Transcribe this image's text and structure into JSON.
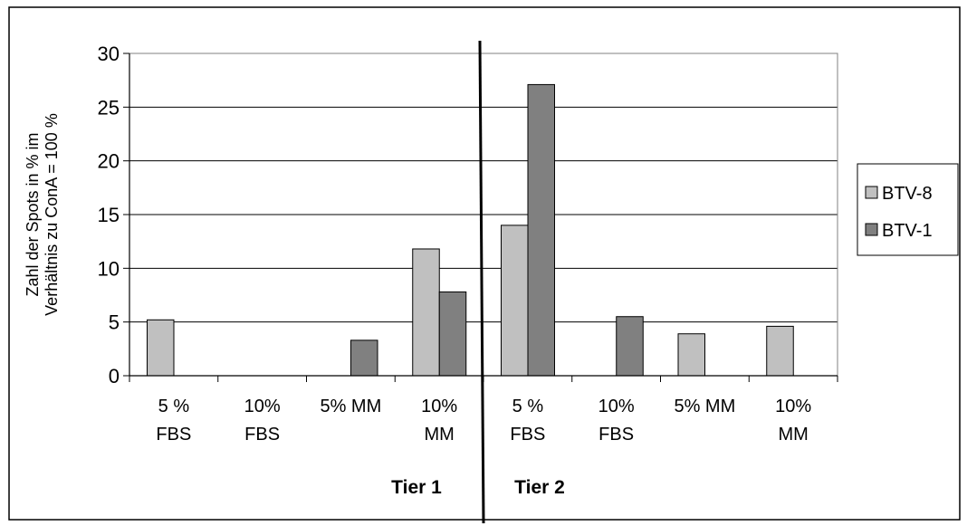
{
  "chart_data": {
    "type": "bar",
    "ylabel_lines": [
      "Zahl der Spots in % im",
      "Verhältnis zu ConA = 100 %"
    ],
    "ylim": [
      0,
      30
    ],
    "yticks": [
      "0",
      "5",
      "10",
      "15",
      "20",
      "25",
      "30"
    ],
    "grid": true,
    "legend_position": "right",
    "categories": [
      [
        "5 %",
        "FBS"
      ],
      [
        "10%",
        "FBS"
      ],
      [
        "5% MM"
      ],
      [
        "10%",
        "MM"
      ],
      [
        "5 %",
        "FBS"
      ],
      [
        "10%",
        "FBS"
      ],
      [
        "5% MM"
      ],
      [
        "10%",
        "MM"
      ]
    ],
    "groups": [
      {
        "label": "Tier 1"
      },
      {
        "label": "Tier 2"
      }
    ],
    "series": [
      {
        "name": "BTV-8",
        "color": "#c0c0c0",
        "values": [
          5.2,
          0,
          0,
          11.8,
          14.0,
          0,
          3.9,
          4.6
        ]
      },
      {
        "name": "BTV-1",
        "color": "#808080",
        "values": [
          0,
          0,
          3.3,
          7.8,
          27.1,
          5.5,
          0,
          0
        ]
      }
    ]
  }
}
